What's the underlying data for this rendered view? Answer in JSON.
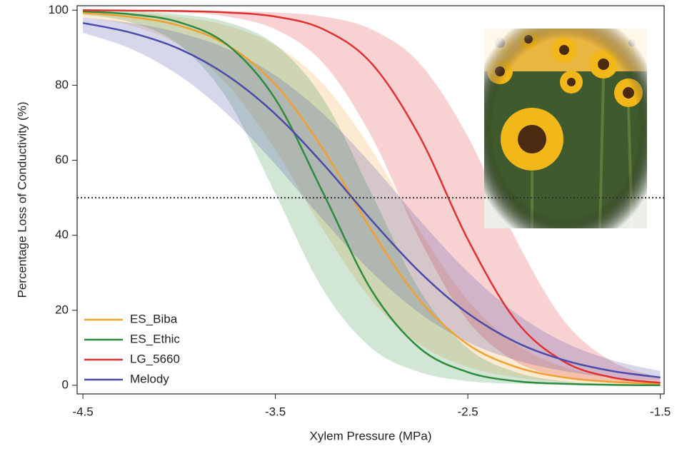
{
  "chart_data": {
    "type": "line",
    "x_label": "Xylem Pressure (MPa)",
    "y_label": "Percentage Loss of Conductivity (%)",
    "x": [
      -4.5,
      -4.25,
      -4.0,
      -3.75,
      -3.5,
      -3.25,
      -3.0,
      -2.75,
      -2.5,
      -2.25,
      -2.0,
      -1.75,
      -1.5
    ],
    "series": [
      {
        "name": "ES_Biba",
        "color": "#f0a030",
        "values": [
          99.3,
          98.2,
          95.9,
          90.7,
          80.2,
          62.8,
          41.3,
          22.7,
          10.9,
          4.9,
          2.1,
          0.9,
          0.4
        ],
        "upper": [
          99.7,
          99.3,
          98.2,
          95.9,
          90.7,
          80.2,
          62.8,
          41.3,
          22.7,
          10.9,
          4.9,
          2.1,
          0.9
        ],
        "lower": [
          98.2,
          95.9,
          90.7,
          80.2,
          62.8,
          41.3,
          22.7,
          10.9,
          4.9,
          2.1,
          0.9,
          0.4,
          0.2
        ]
      },
      {
        "name": "ES_Ethic",
        "color": "#2e8b3e",
        "values": [
          99.7,
          98.9,
          96.8,
          90.8,
          76.3,
          51.1,
          25.3,
          9.9,
          3.5,
          1.1,
          0.4,
          0.1,
          0.0
        ],
        "upper": [
          99.9,
          99.7,
          98.9,
          96.8,
          90.8,
          76.3,
          51.1,
          25.3,
          9.9,
          3.5,
          1.1,
          0.4,
          0.1
        ],
        "lower": [
          98.9,
          96.8,
          90.8,
          76.3,
          51.1,
          25.3,
          9.9,
          3.5,
          1.1,
          0.4,
          0.1,
          0.0,
          0.0
        ]
      },
      {
        "name": "LG_5660",
        "color": "#e03030",
        "values": [
          100.0,
          99.9,
          99.8,
          99.4,
          98.3,
          94.9,
          85.8,
          66.3,
          38.9,
          17.2,
          6.3,
          2.1,
          0.7
        ],
        "upper": [
          100.0,
          100.0,
          99.9,
          99.8,
          99.4,
          98.3,
          94.9,
          85.8,
          66.3,
          38.9,
          17.2,
          6.3,
          2.1
        ],
        "lower": [
          99.9,
          99.8,
          99.4,
          98.3,
          94.9,
          85.8,
          66.3,
          38.9,
          17.2,
          6.3,
          2.1,
          0.7,
          0.2
        ]
      },
      {
        "name": "Melody",
        "color": "#4a4aa8",
        "values": [
          96.6,
          94.0,
          89.7,
          82.6,
          72.3,
          58.9,
          44.0,
          30.2,
          19.2,
          11.5,
          6.7,
          3.8,
          2.1
        ],
        "upper": [
          98.1,
          96.6,
          94.0,
          89.7,
          82.6,
          72.3,
          58.9,
          44.0,
          30.2,
          19.2,
          11.5,
          6.7,
          3.8
        ],
        "lower": [
          94.0,
          89.7,
          82.6,
          72.3,
          58.9,
          44.0,
          30.2,
          19.2,
          11.5,
          6.7,
          3.8,
          2.1,
          1.2
        ]
      }
    ],
    "xlim": [
      -4.53,
      -1.48
    ],
    "ylim": [
      -2.3,
      101.2
    ],
    "xticks": [
      -4.5,
      -3.5,
      -2.5,
      -1.5
    ],
    "yticks": [
      0,
      20,
      40,
      60,
      80,
      100
    ],
    "reference_line": 50,
    "legend": "lower-left"
  }
}
